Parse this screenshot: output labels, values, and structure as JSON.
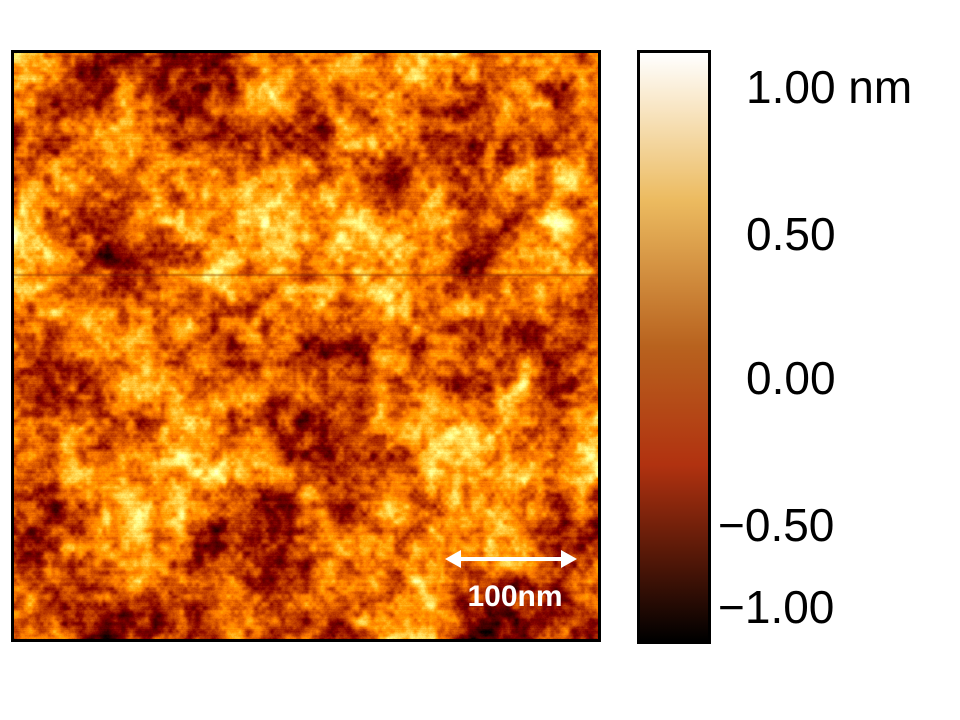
{
  "image": {
    "type": "afm-height-map",
    "colormap": "afmhot",
    "colors": {
      "low": "#000000",
      "mid_low": "#b13210",
      "mid": "#b8621e",
      "mid_high": "#ecbb60",
      "high": "#ffffff"
    }
  },
  "scale_bar": {
    "label": "100nm",
    "color": "#ffffff"
  },
  "colorbar": {
    "range": [
      -1.0,
      1.0
    ],
    "unit": "nm",
    "ticks": [
      {
        "value": 1.0,
        "label": "1.00 nm"
      },
      {
        "value": 0.5,
        "label": "0.50"
      },
      {
        "value": 0.0,
        "label": "0.00"
      },
      {
        "value": -0.5,
        "label": "−0.50"
      },
      {
        "value": -1.0,
        "label": "−1.00"
      }
    ]
  }
}
